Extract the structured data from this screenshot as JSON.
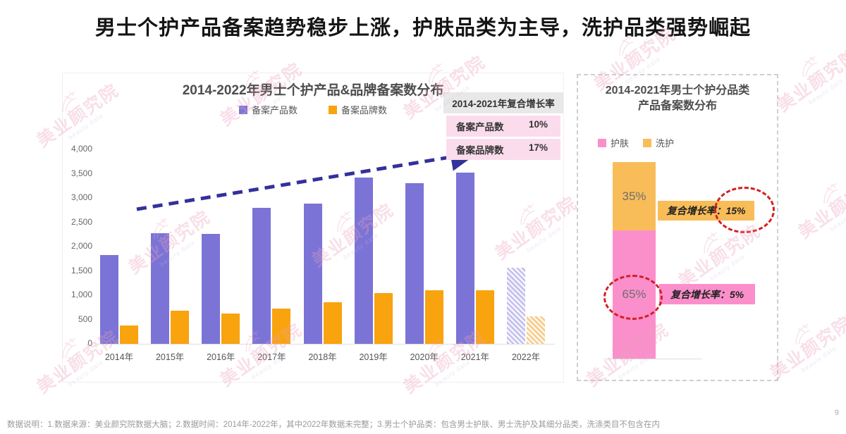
{
  "page": {
    "title": "男士个护产品备案趋势稳步上涨，护肤品类为主导，洗护品类强势崛起",
    "footer": "数据说明：1.数据来源：美业颜究院数据大脑；2.数据时间：2014年-2022年，其中2022年数据未完整；3.男士个护品类：包含男士护肤、男士洗护及其细分品类，洗涤类目不包含在内",
    "page_number": "9",
    "watermark": "美业颜究院"
  },
  "colors": {
    "product_bar": "#7b74d6",
    "brand_bar": "#f9a30f",
    "skincare": "#fb8fcb",
    "wash": "#f8bd59",
    "arrow": "#32329b",
    "circle": "#d42020"
  },
  "left_chart": {
    "title": "2014-2022年男士个护产品&品牌备案数分布",
    "legend": [
      {
        "label": "备案产品数"
      },
      {
        "label": "备案品牌数"
      }
    ]
  },
  "cagr_box": {
    "header": "2014-2021年复合增长率",
    "rows": [
      {
        "label": "备案产品数",
        "value": "10%"
      },
      {
        "label": "备案品牌数",
        "value": "17%"
      }
    ]
  },
  "right_chart": {
    "title_line1": "2014-2021年男士个护分品类",
    "title_line2": "产品备案数分布",
    "legend": [
      {
        "label": "护肤"
      },
      {
        "label": "洗护"
      }
    ],
    "wash_pct": "35%",
    "skin_pct": "65%",
    "callout_wash": "复合增长率：15%",
    "callout_skin": "复合增长率：5%"
  },
  "chart_data": [
    {
      "type": "bar",
      "title": "2014-2022年男士个护产品&品牌备案数分布",
      "categories": [
        "2014年",
        "2015年",
        "2016年",
        "2017年",
        "2018年",
        "2019年",
        "2020年",
        "2021年",
        "2022年"
      ],
      "series": [
        {
          "name": "备案产品数",
          "values": [
            1820,
            2280,
            2260,
            2800,
            2880,
            3420,
            3300,
            3520,
            1560
          ]
        },
        {
          "name": "备案品牌数",
          "values": [
            370,
            680,
            620,
            720,
            850,
            1050,
            1100,
            1100,
            560
          ]
        }
      ],
      "y_ticks": [
        "0",
        "500",
        "1,000",
        "1,500",
        "2,000",
        "2,500",
        "3,000",
        "3,500",
        "4,000"
      ],
      "ylim": [
        0,
        4000
      ],
      "grid": false,
      "legend_position": "top",
      "notes": "2022年数据未完整（柱体以纹理填充表示）；值为按坐标轴估读",
      "annotations": [
        {
          "type": "dashed-arrow",
          "meaning": "备案数上升趋势"
        },
        {
          "type": "table",
          "title": "2014-2021年复合增长率",
          "rows": [
            [
              "备案产品数",
              "10%"
            ],
            [
              "备案品牌数",
              "17%"
            ]
          ]
        }
      ]
    },
    {
      "type": "bar",
      "subtype": "stacked-percent",
      "title": "2014-2021年男士个护分品类产品备案数分布",
      "categories": [
        "男士个护"
      ],
      "series": [
        {
          "name": "洗护",
          "values": [
            35
          ],
          "unit": "%",
          "annotation": "复合增长率：15%"
        },
        {
          "name": "护肤",
          "values": [
            65
          ],
          "unit": "%",
          "annotation": "复合增长率：5%"
        }
      ],
      "grid": false,
      "legend_position": "top"
    }
  ]
}
